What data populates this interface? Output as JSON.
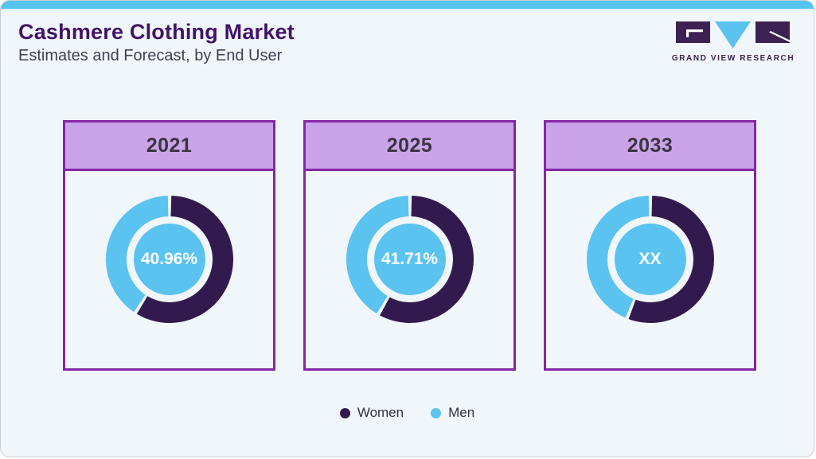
{
  "page": {
    "title": "Cashmere Clothing Market",
    "subtitle": "Estimates and Forecast, by End User"
  },
  "logo": {
    "brand": "Grand View Research",
    "text": "GRAND VIEW RESEARCH"
  },
  "colors": {
    "top_bar": "#55c3ee",
    "background": "#f0f6fa",
    "card_border": "#8526a5",
    "card_header_bg": "#cba3e8",
    "title_text": "#421369",
    "women": "#331a4e",
    "men": "#5bc3f0",
    "center_circle": "#5bc3f0",
    "center_text": "#ffffff",
    "logo_purple": "#3d2153",
    "logo_blue": "#5bc3f0"
  },
  "chart_data": {
    "type": "pie",
    "variant": "donut",
    "title": "Cashmere Clothing Market",
    "subtitle": "Estimates and Forecast, by End User",
    "legend_position": "bottom",
    "legend": [
      {
        "label": "Women",
        "color": "#331a4e"
      },
      {
        "label": "Men",
        "color": "#5bc3f0"
      }
    ],
    "charts": [
      {
        "year": "2021",
        "center_label": "40.96%",
        "series": [
          {
            "name": "Women",
            "value": 59.04
          },
          {
            "name": "Men",
            "value": 40.96
          }
        ]
      },
      {
        "year": "2025",
        "center_label": "41.71%",
        "series": [
          {
            "name": "Women",
            "value": 58.29
          },
          {
            "name": "Men",
            "value": 41.71
          }
        ]
      },
      {
        "year": "2033",
        "center_label": "XX",
        "series": [
          {
            "name": "Women",
            "value": 56
          },
          {
            "name": "Men",
            "value": 44
          }
        ]
      }
    ]
  }
}
